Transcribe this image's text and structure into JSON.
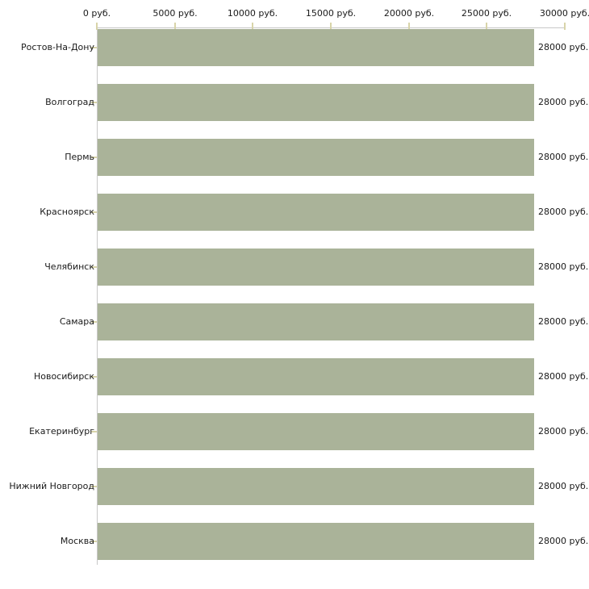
{
  "chart_data": {
    "type": "bar",
    "orientation": "horizontal",
    "title": "",
    "categories": [
      "Ростов-На-Дону",
      "Волгоград",
      "Пермь",
      "Красноярск",
      "Челябинск",
      "Самара",
      "Новосибирск",
      "Екатеринбург",
      "Нижний Новгород",
      "Москва"
    ],
    "values": [
      28000,
      28000,
      28000,
      28000,
      28000,
      28000,
      28000,
      28000,
      28000,
      28000
    ],
    "bar_labels": [
      "28000 руб.",
      "28000 руб.",
      "28000 руб.",
      "28000 руб.",
      "28000 руб.",
      "28000 руб.",
      "28000 руб.",
      "28000 руб.",
      "28000 руб.",
      "28000 руб."
    ],
    "x_axis": {
      "position": "top",
      "range": [
        0,
        30000
      ],
      "ticks": [
        0,
        5000,
        10000,
        15000,
        20000,
        25000,
        30000
      ],
      "tick_labels": [
        "0 руб.",
        "5000 руб.",
        "10000 руб.",
        "15000 руб.",
        "20000 руб.",
        "25000 руб.",
        "30000 руб."
      ]
    },
    "value_suffix": " руб.",
    "grid": false,
    "legend": false,
    "colors": {
      "bar": "#aab399",
      "axis_line": "#c8c8c8",
      "tick": "#d8d4a9",
      "text": "#1a1a1a",
      "background": "#ffffff"
    }
  }
}
